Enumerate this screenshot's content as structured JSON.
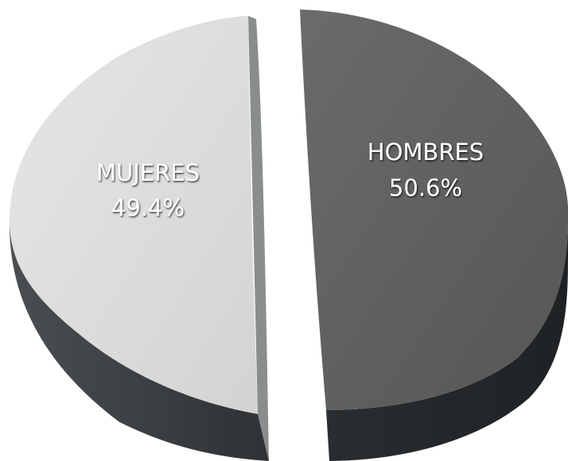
{
  "chart_data": {
    "type": "pie",
    "style": "3d-exploded",
    "slices": [
      {
        "label": "HOMBRES",
        "value": 50.6,
        "display": "50.6%",
        "color": "#5e5f5e",
        "side_color": "#2f3233"
      },
      {
        "label": "MUJERES",
        "value": 49.4,
        "display": "49.4%",
        "color": "#dcdcdc",
        "side_color": "#3a3d3e"
      }
    ]
  }
}
